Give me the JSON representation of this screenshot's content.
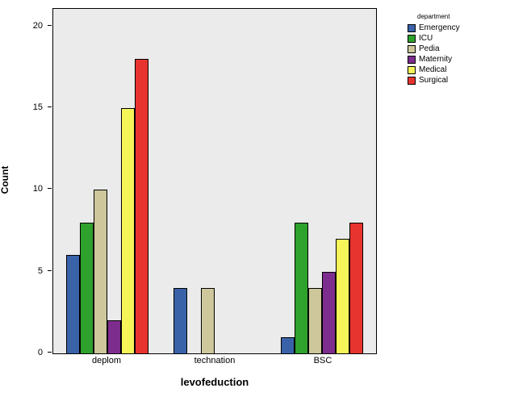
{
  "chart_data": {
    "type": "bar",
    "title": "",
    "xlabel": "levofeduction",
    "ylabel": "Count",
    "categories": [
      "deplom",
      "technation",
      "BSC"
    ],
    "series": [
      {
        "name": "Emergency",
        "color": "#3a62a8",
        "values": [
          6,
          4,
          1
        ]
      },
      {
        "name": "ICU",
        "color": "#2fa12d",
        "values": [
          8,
          0,
          8
        ]
      },
      {
        "name": "Pedia",
        "color": "#cdc79b",
        "values": [
          10,
          4,
          4
        ]
      },
      {
        "name": "Maternity",
        "color": "#7d2d8d",
        "values": [
          2,
          0,
          5
        ]
      },
      {
        "name": "Medical",
        "color": "#f5f55a",
        "values": [
          15,
          0,
          7
        ]
      },
      {
        "name": "Surgical",
        "color": "#e7342e",
        "values": [
          18,
          0,
          8
        ]
      }
    ],
    "ylim": [
      0,
      20
    ],
    "yticks": [
      0,
      5,
      10,
      15,
      20
    ],
    "legend_title": "department",
    "legend_position": "right",
    "grid": false,
    "plot_background": "#ebebeb"
  }
}
